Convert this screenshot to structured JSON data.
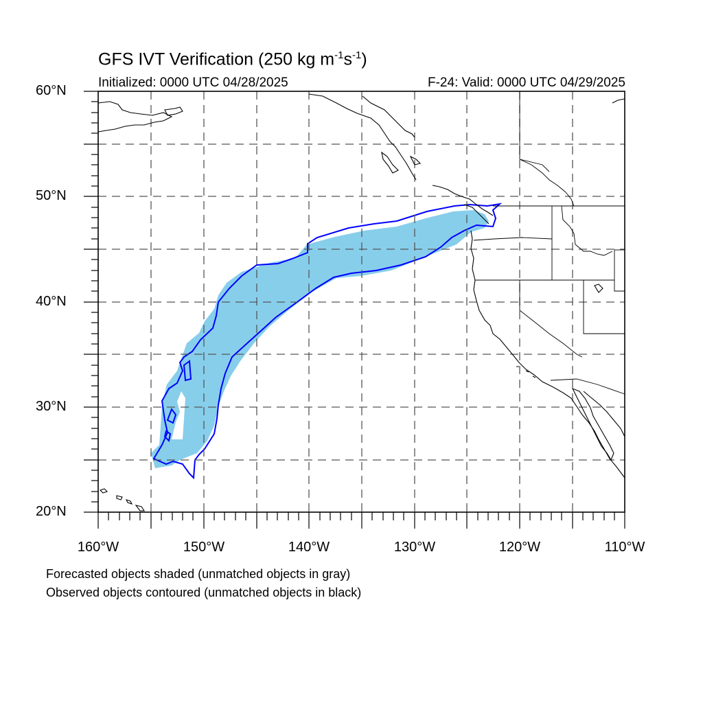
{
  "title": {
    "main": "GFS IVT Verification (250 kg m",
    "exp1": "-1",
    "mid": "s",
    "exp2": "-1",
    "end": ")"
  },
  "subtitle_left": "Initialized: 0000 UTC 04/28/2025",
  "subtitle_right": "F-24: Valid: 0000 UTC 04/29/2025",
  "lat_labels": [
    {
      "id": "60",
      "text": "60°N"
    },
    {
      "id": "50",
      "text": "50°N"
    },
    {
      "id": "40",
      "text": "40°N"
    },
    {
      "id": "30",
      "text": "30°N"
    },
    {
      "id": "20",
      "text": "20°N"
    }
  ],
  "lon_labels": [
    {
      "id": "160w",
      "text": "160°W"
    },
    {
      "id": "150w",
      "text": "150°W"
    },
    {
      "id": "140w",
      "text": "140°W"
    },
    {
      "id": "130w",
      "text": "130°W"
    },
    {
      "id": "120w",
      "text": "120°W"
    },
    {
      "id": "110w",
      "text": "110°W"
    }
  ],
  "map_extent": {
    "lon_min": -160,
    "lon_max": -110,
    "lat_min": 20,
    "lat_max": 60
  },
  "footnote_1": "Forecasted objects shaded (unmatched objects in gray)",
  "footnote_2": "Observed objects contoured (unmatched objects in black)",
  "colors": {
    "forecast_fill": "#87ceeb",
    "observed_contour": "#0000ff",
    "grid": "#555555",
    "coast": "#000000"
  }
}
